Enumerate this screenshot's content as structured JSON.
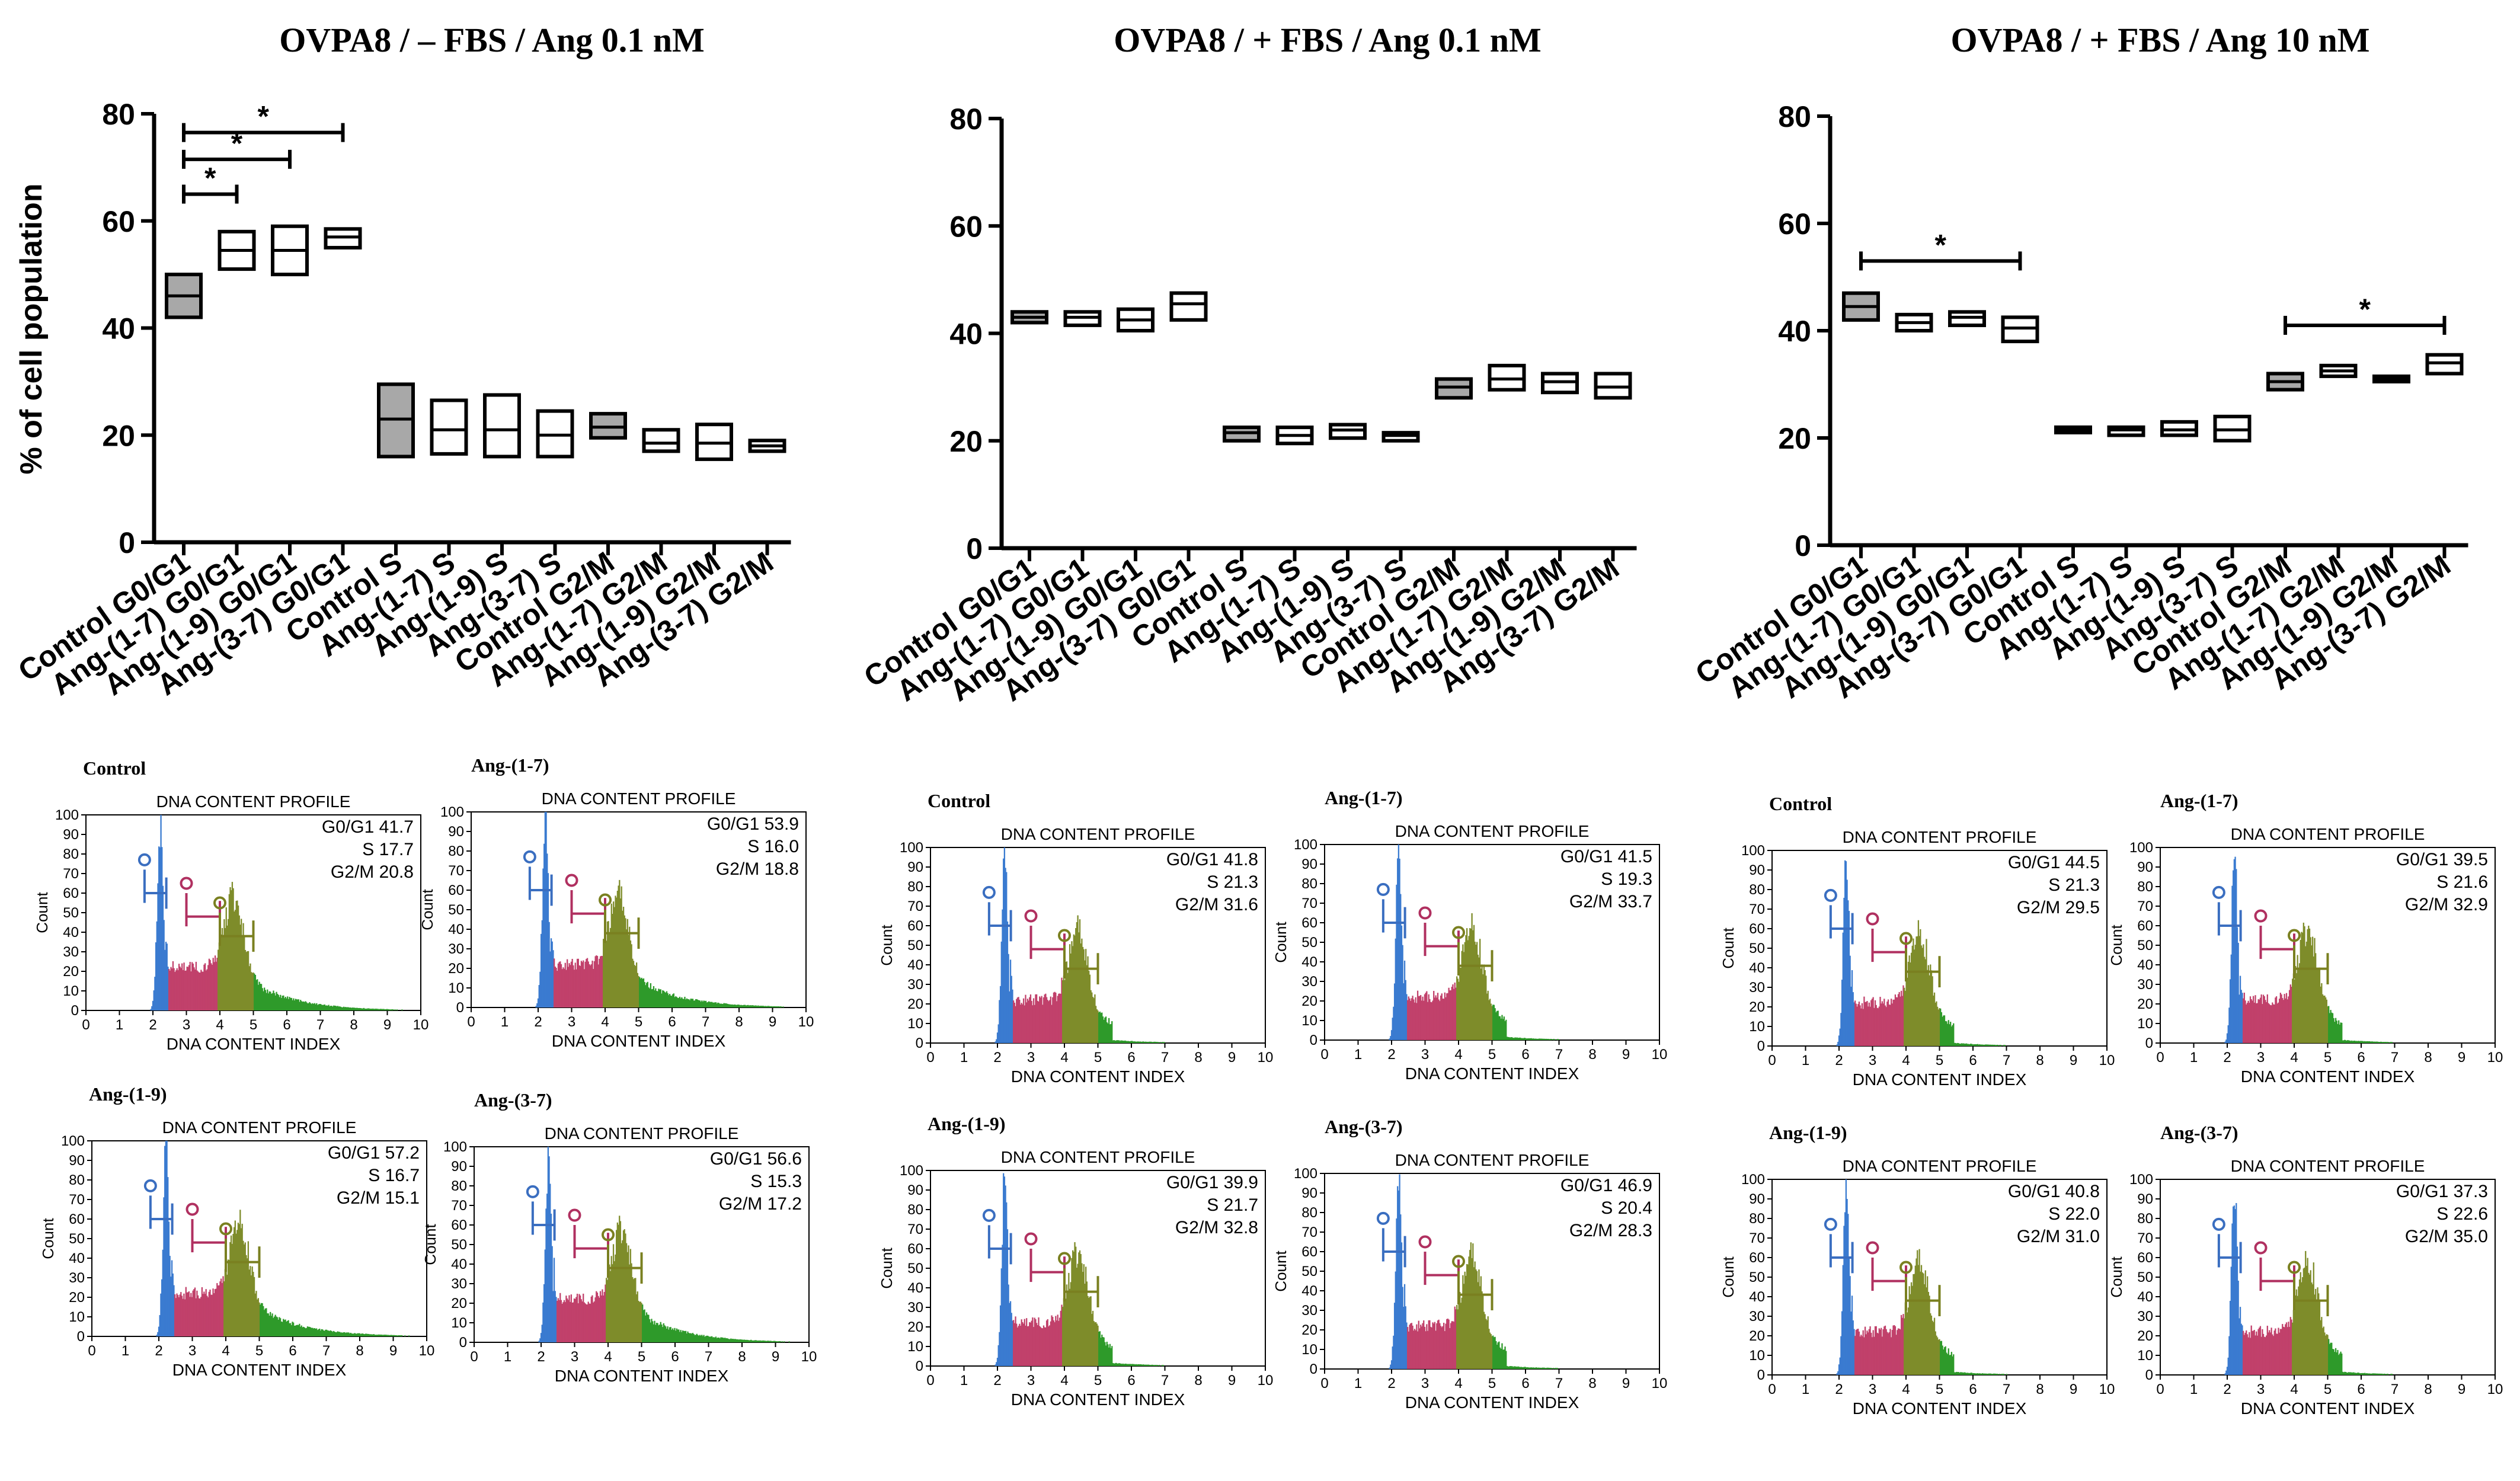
{
  "figure": {
    "ylabel": "% of cell population",
    "flow_title": "DNA CONTENT PROFILE",
    "flow_xlabel": "DNA CONTENT INDEX",
    "flow_ylabel": "Count",
    "stat_labels": [
      "G0/G1",
      "S",
      "G2/M"
    ],
    "colors": {
      "control_fill": "#a8a8a8",
      "box_stroke": "#000000",
      "g0g1": "#3a7bd0",
      "s_phase": "#c1416b",
      "g2m": "#7e8c2a",
      "tail": "#2e9a2a",
      "marker_blue": "#3a6ec0",
      "marker_red": "#b03060",
      "marker_olive": "#7a8020"
    }
  },
  "chart_data": [
    {
      "type": "box",
      "title": "OVPA8 / – FBS / Ang 0.1 nM",
      "ylabel": "% of cell population",
      "ylim": [
        0,
        80
      ],
      "yticks": [
        0,
        20,
        40,
        60,
        80
      ],
      "categories": [
        "Control G0/G1",
        "Ang-(1-7) G0/G1",
        "Ang-(1-9) G0/G1",
        "Ang-(3-7) G0/G1",
        "Control S",
        "Ang-(1-7) S",
        "Ang-(1-9) S",
        "Ang-(3-7) S",
        "Control G2/M",
        "Ang-(1-7) G2/M",
        "Ang-(1-9) G2/M",
        "Ang-(3-7) G2/M"
      ],
      "boxes": [
        {
          "min": 42,
          "median": 46,
          "max": 50,
          "filled": true
        },
        {
          "min": 51,
          "median": 54.5,
          "max": 58,
          "filled": false
        },
        {
          "min": 50,
          "median": 54.5,
          "max": 59,
          "filled": false
        },
        {
          "min": 55,
          "median": 57,
          "max": 58.5,
          "filled": false
        },
        {
          "min": 16,
          "median": 23,
          "max": 29.5,
          "filled": true
        },
        {
          "min": 16.5,
          "median": 21,
          "max": 26.5,
          "filled": false
        },
        {
          "min": 16,
          "median": 21,
          "max": 27.5,
          "filled": false
        },
        {
          "min": 16,
          "median": 20,
          "max": 24.5,
          "filled": false
        },
        {
          "min": 19.5,
          "median": 21.5,
          "max": 24,
          "filled": true
        },
        {
          "min": 17,
          "median": 18.5,
          "max": 21,
          "filled": false
        },
        {
          "min": 15.5,
          "median": 18.5,
          "max": 22,
          "filled": false
        },
        {
          "min": 17,
          "median": 18,
          "max": 19,
          "filled": false
        }
      ],
      "significance": [
        {
          "from": 0,
          "to": 3,
          "y": 76.5,
          "label": "*"
        },
        {
          "from": 0,
          "to": 2,
          "y": 71.5,
          "label": "*"
        },
        {
          "from": 0,
          "to": 1,
          "y": 65,
          "label": "*"
        }
      ]
    },
    {
      "type": "box",
      "title": "OVPA8 / + FBS / Ang 0.1 nM",
      "ylim": [
        0,
        80
      ],
      "yticks": [
        0,
        20,
        40,
        60,
        80
      ],
      "categories": [
        "Control G0/G1",
        "Ang-(1-7) G0/G1",
        "Ang-(1-9) G0/G1",
        "Ang-(3-7) G0/G1",
        "Control S",
        "Ang-(1-7) S",
        "Ang-(1-9) S",
        "Ang-(3-7) S",
        "Control G2/M",
        "Ang-(1-7) G2/M",
        "Ang-(1-9) G2/M",
        "Ang-(3-7) G2/M"
      ],
      "boxes": [
        {
          "min": 42,
          "median": 43,
          "max": 44,
          "filled": true
        },
        {
          "min": 41.5,
          "median": 43,
          "max": 44,
          "filled": false
        },
        {
          "min": 40.5,
          "median": 42.5,
          "max": 44.5,
          "filled": false
        },
        {
          "min": 42.5,
          "median": 45.5,
          "max": 47.5,
          "filled": false
        },
        {
          "min": 20,
          "median": 21.5,
          "max": 22.5,
          "filled": true
        },
        {
          "min": 19.5,
          "median": 21,
          "max": 22.5,
          "filled": false
        },
        {
          "min": 20.5,
          "median": 22,
          "max": 23,
          "filled": false
        },
        {
          "min": 20,
          "median": 21,
          "max": 21.5,
          "filled": false
        },
        {
          "min": 28,
          "median": 30,
          "max": 31.5,
          "filled": true
        },
        {
          "min": 29.5,
          "median": 31.5,
          "max": 34,
          "filled": false
        },
        {
          "min": 29,
          "median": 31,
          "max": 32.5,
          "filled": false
        },
        {
          "min": 28,
          "median": 30,
          "max": 32.5,
          "filled": false
        }
      ],
      "significance": []
    },
    {
      "type": "box",
      "title": "OVPA8 / + FBS / Ang 10 nM",
      "ylim": [
        0,
        80
      ],
      "yticks": [
        0,
        20,
        40,
        60,
        80
      ],
      "categories": [
        "Control G0/G1",
        "Ang-(1-7) G0/G1",
        "Ang-(1-9) G0/G1",
        "Ang-(3-7) G0/G1",
        "Control S",
        "Ang-(1-7) S",
        "Ang-(1-9) S",
        "Ang-(3-7) S",
        "Control G2/M",
        "Ang-(1-7) G2/M",
        "Ang-(1-9) G2/M",
        "Ang-(3-7) G2/M"
      ],
      "boxes": [
        {
          "min": 42,
          "median": 44.5,
          "max": 47,
          "filled": true
        },
        {
          "min": 40,
          "median": 41.5,
          "max": 43,
          "filled": false
        },
        {
          "min": 41,
          "median": 42.5,
          "max": 43.5,
          "filled": false
        },
        {
          "min": 38,
          "median": 40.5,
          "max": 42.5,
          "filled": false
        },
        {
          "min": 21,
          "median": 21.5,
          "max": 22,
          "filled": true
        },
        {
          "min": 20.5,
          "median": 21.5,
          "max": 22,
          "filled": false
        },
        {
          "min": 20.5,
          "median": 21.5,
          "max": 23,
          "filled": false
        },
        {
          "min": 19.5,
          "median": 21.5,
          "max": 24,
          "filled": false
        },
        {
          "min": 29,
          "median": 30.5,
          "max": 32,
          "filled": true
        },
        {
          "min": 31.5,
          "median": 32.5,
          "max": 33.5,
          "filled": false
        },
        {
          "min": 30.5,
          "median": 31,
          "max": 31.5,
          "filled": false
        },
        {
          "min": 32,
          "median": 34,
          "max": 35.5,
          "filled": false
        }
      ],
      "significance": [
        {
          "from": 0,
          "to": 3,
          "y": 53,
          "label": "*"
        },
        {
          "from": 8,
          "to": 11,
          "y": 41,
          "label": "*"
        }
      ]
    },
    {
      "type": "histogram-panels",
      "xlim": [
        0,
        10
      ],
      "ylim": [
        0,
        100
      ],
      "xticks": [
        0,
        1,
        2,
        3,
        4,
        5,
        6,
        7,
        8,
        9,
        10
      ],
      "yticks": [
        0,
        10,
        20,
        30,
        40,
        50,
        60,
        70,
        80,
        90,
        100
      ],
      "panels": [
        {
          "label": "Control",
          "g0g1": "41.7",
          "s": "17.7",
          "g2m": "20.8"
        },
        {
          "label": "Ang-(1-7)",
          "g0g1": "53.9",
          "s": "16.0",
          "g2m": "18.8"
        },
        {
          "label": "Ang-(1-9)",
          "g0g1": "57.2",
          "s": "16.7",
          "g2m": "15.1"
        },
        {
          "label": "Ang-(3-7)",
          "g0g1": "56.6",
          "s": "15.3",
          "g2m": "17.2"
        },
        {
          "label": "Control",
          "g0g1": "41.8",
          "s": "21.3",
          "g2m": "31.6"
        },
        {
          "label": "Ang-(1-7)",
          "g0g1": "41.5",
          "s": "19.3",
          "g2m": "33.7"
        },
        {
          "label": "Ang-(1-9)",
          "g0g1": "39.9",
          "s": "21.7",
          "g2m": "32.8"
        },
        {
          "label": "Ang-(3-7)",
          "g0g1": "46.9",
          "s": "20.4",
          "g2m": "28.3"
        },
        {
          "label": "Control",
          "g0g1": "44.5",
          "s": "21.3",
          "g2m": "29.5"
        },
        {
          "label": "Ang-(1-7)",
          "g0g1": "39.5",
          "s": "21.6",
          "g2m": "32.9"
        },
        {
          "label": "Ang-(1-9)",
          "g0g1": "40.8",
          "s": "22.0",
          "g2m": "31.0"
        },
        {
          "label": "Ang-(3-7)",
          "g0g1": "37.3",
          "s": "22.6",
          "g2m": "35.0"
        }
      ]
    }
  ]
}
